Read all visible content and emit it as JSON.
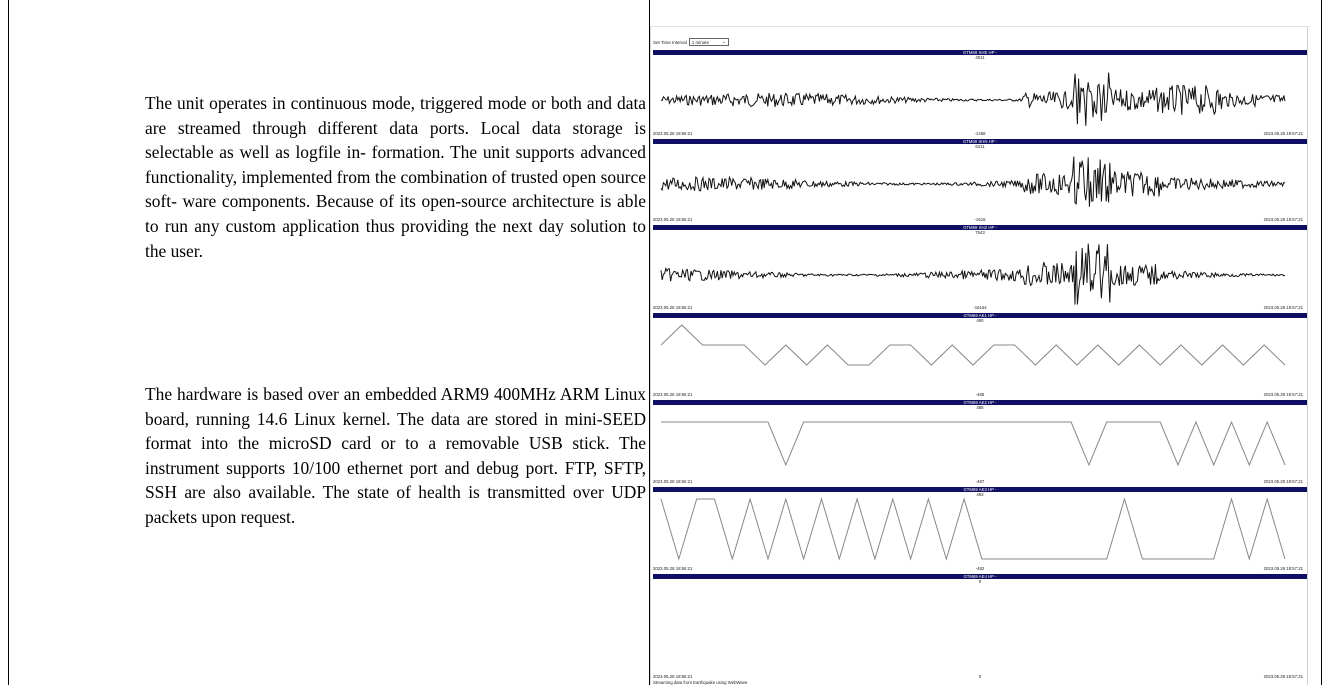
{
  "text": {
    "paragraph_1": "The unit operates in continuous mode, triggered mode or both and data are streamed through different data ports. Local data storage is selectable as well as logfile in- formation. The unit supports advanced functionality, implemented from the combination of trusted open source soft- ware components. Because of its open-source architecture is able to run any custom application thus providing the next day solution to the user.",
    "paragraph_2": "The hardware is based over an embedded ARM9 400MHz ARM Linux board, running 14.6 Linux kernel. The data are stored in mini-SEED format into the microSD card or to a removable USB stick. The instrument supports 10/100 ethernet port and debug port. FTP, SFTP, SSH are also available. The state of health is transmitted over UDP packets upon request."
  },
  "screenshot": {
    "controls": {
      "label": "Set Time Interval",
      "select_value": "1 minute"
    },
    "panels": [
      {
        "title": "GTM69 SHE HP -",
        "max": "4011",
        "min": "-1458",
        "start": "2023.05.28 18:56:21",
        "end": "2023.05.28 18:57:21"
      },
      {
        "title": "GTM69 SHN HP -",
        "max": "6411",
        "min": "-1615",
        "start": "2023.05.28 18:56:21",
        "end": "2023.05.28 18:57:21"
      },
      {
        "title": "GTM69 SHZ HP -",
        "max": "7543",
        "min": "-16164",
        "start": "2023.05.28 18:56:21",
        "end": "2023.05.28 18:57:21"
      },
      {
        "title": "GTM69 AE1 HP -",
        "max": "490",
        "min": "-485",
        "start": "2023.05.28 18:56:21",
        "end": "2023.05.28 18:57:21"
      },
      {
        "title": "GTM69 AE2 HP -",
        "max": "488",
        "min": "-487",
        "start": "2023.05.28 18:56:21",
        "end": "2023.05.28 18:57:21"
      },
      {
        "title": "GTM69 AE3 HP -",
        "max": "493",
        "min": "-482",
        "start": "2023.05.28 18:56:21",
        "end": "2023.05.28 18:57:21"
      },
      {
        "title": "GTM69 AE4 HP -",
        "max": "0",
        "min": "0",
        "start": "2023.05.28 18:56:21",
        "end": "2023.05.28 18:57:21"
      }
    ],
    "footer_note": "Streaming data from Earthquake using WebWave",
    "colors": {
      "title_bar": "#0e0e62",
      "seismic_trace": "#111111",
      "analog_trace": "#888888"
    }
  }
}
